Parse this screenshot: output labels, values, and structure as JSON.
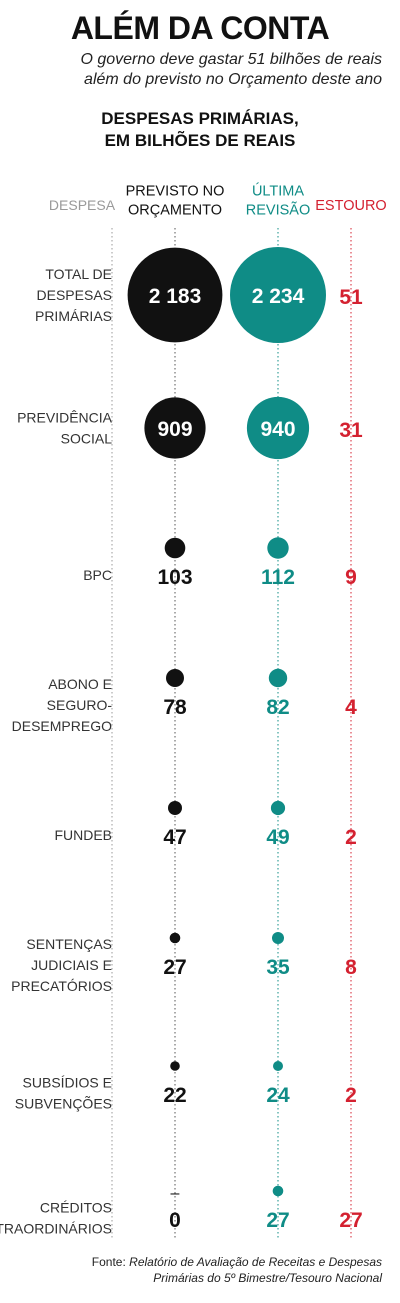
{
  "title": "ALÉM DA CONTA",
  "subtitle": "O governo deve gastar 51 bilhões de reais além do previsto no Orçamento deste ano",
  "chart_title_line1": "DESPESAS PRIMÁRIAS,",
  "chart_title_line2": "EM BILHÕES DE REAIS",
  "source_label": "Fonte:",
  "source_text": "Relatório de Avaliação de Receitas e Despesas Primárias do 5º Bimestre/Tesouro Nacional",
  "colors": {
    "previsto": "#111111",
    "revisao": "#0f8c86",
    "estouro": "#d42130",
    "label": "#333333",
    "header_gray": "#9a9a9a"
  },
  "chart_data": {
    "type": "table",
    "column_headers": {
      "despesa": "DESPESA",
      "previsto": [
        "PREVISTO NO",
        "ORÇAMENTO"
      ],
      "revisao": [
        "ÚLTIMA",
        "REVISÃO"
      ],
      "estouro": "ESTOURO"
    },
    "rows": [
      {
        "label": [
          "TOTAL DE",
          "DESPESAS",
          "PRIMÁRIAS"
        ],
        "previsto": 2183,
        "previsto_text": "2 183",
        "revisao": 2234,
        "revisao_text": "2 234",
        "estouro": 51,
        "estouro_text": "51"
      },
      {
        "label": [
          "PREVIDÊNCIA",
          "SOCIAL"
        ],
        "previsto": 909,
        "previsto_text": "909",
        "revisao": 940,
        "revisao_text": "940",
        "estouro": 31,
        "estouro_text": "31"
      },
      {
        "label": [
          "BPC"
        ],
        "previsto": 103,
        "previsto_text": "103",
        "revisao": 112,
        "revisao_text": "112",
        "estouro": 9,
        "estouro_text": "9"
      },
      {
        "label": [
          "ABONO E",
          "SEGURO-",
          "DESEMPREGO"
        ],
        "previsto": 78,
        "previsto_text": "78",
        "revisao": 82,
        "revisao_text": "82",
        "estouro": 4,
        "estouro_text": "4"
      },
      {
        "label": [
          "FUNDEB"
        ],
        "previsto": 47,
        "previsto_text": "47",
        "revisao": 49,
        "revisao_text": "49",
        "estouro": 2,
        "estouro_text": "2"
      },
      {
        "label": [
          "SENTENÇAS",
          "JUDICIAIS E",
          "PRECATÓRIOS"
        ],
        "previsto": 27,
        "previsto_text": "27",
        "revisao": 35,
        "revisao_text": "35",
        "estouro": 8,
        "estouro_text": "8"
      },
      {
        "label": [
          "SUBSÍDIOS E",
          "SUBVENÇÕES"
        ],
        "previsto": 22,
        "previsto_text": "22",
        "revisao": 24,
        "revisao_text": "24",
        "estouro": 2,
        "estouro_text": "2"
      },
      {
        "label": [
          "CRÉDITOS",
          "EXTRAORDINÁRIOS"
        ],
        "previsto": 0,
        "previsto_text": "0",
        "previsto_marker": "–",
        "revisao": 27,
        "revisao_text": "27",
        "estouro": 27,
        "estouro_text": "27"
      }
    ]
  }
}
